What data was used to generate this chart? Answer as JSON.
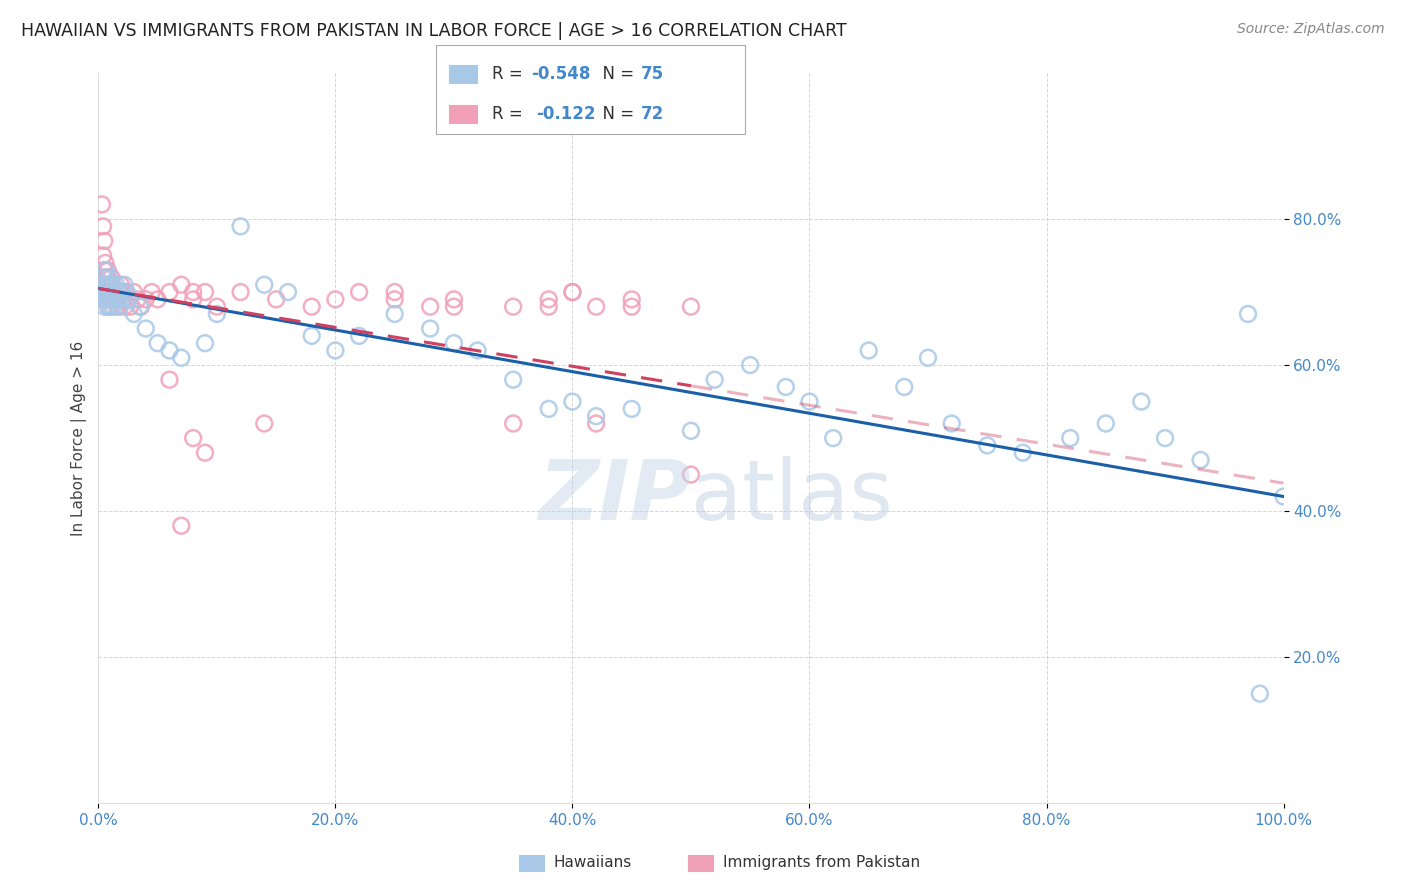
{
  "title": "HAWAIIAN VS IMMIGRANTS FROM PAKISTAN IN LABOR FORCE | AGE > 16 CORRELATION CHART",
  "source": "Source: ZipAtlas.com",
  "ylabel": "In Labor Force | Age > 16",
  "blue_R": -0.548,
  "blue_N": 75,
  "pink_R": -0.122,
  "pink_N": 72,
  "blue_color": "#a8c8e8",
  "pink_color": "#f0a0b8",
  "blue_line_color": "#1a5fa8",
  "pink_line_color": "#d04060",
  "watermark_zip": "ZIP",
  "watermark_atlas": "atlas",
  "legend_label_blue": "Hawaiians",
  "legend_label_pink": "Immigrants from Pakistan",
  "blue_scatter_x": [
    0.002,
    0.003,
    0.004,
    0.004,
    0.005,
    0.005,
    0.006,
    0.006,
    0.007,
    0.007,
    0.008,
    0.008,
    0.009,
    0.009,
    0.01,
    0.01,
    0.011,
    0.011,
    0.012,
    0.012,
    0.013,
    0.013,
    0.014,
    0.015,
    0.016,
    0.017,
    0.018,
    0.019,
    0.02,
    0.022,
    0.024,
    0.026,
    0.03,
    0.035,
    0.04,
    0.05,
    0.06,
    0.07,
    0.09,
    0.1,
    0.12,
    0.14,
    0.16,
    0.18,
    0.2,
    0.22,
    0.25,
    0.28,
    0.3,
    0.32,
    0.35,
    0.38,
    0.4,
    0.42,
    0.45,
    0.5,
    0.52,
    0.55,
    0.58,
    0.6,
    0.62,
    0.65,
    0.68,
    0.7,
    0.72,
    0.75,
    0.78,
    0.82,
    0.85,
    0.88,
    0.9,
    0.93,
    0.97,
    0.98,
    1.0
  ],
  "blue_scatter_y": [
    0.7,
    0.71,
    0.69,
    0.72,
    0.7,
    0.68,
    0.71,
    0.73,
    0.7,
    0.69,
    0.71,
    0.68,
    0.7,
    0.72,
    0.69,
    0.71,
    0.7,
    0.68,
    0.71,
    0.7,
    0.69,
    0.68,
    0.7,
    0.71,
    0.7,
    0.69,
    0.68,
    0.7,
    0.69,
    0.71,
    0.7,
    0.69,
    0.67,
    0.68,
    0.65,
    0.63,
    0.62,
    0.61,
    0.63,
    0.67,
    0.79,
    0.71,
    0.7,
    0.64,
    0.62,
    0.64,
    0.67,
    0.65,
    0.63,
    0.62,
    0.58,
    0.54,
    0.55,
    0.53,
    0.54,
    0.51,
    0.58,
    0.6,
    0.57,
    0.55,
    0.5,
    0.62,
    0.57,
    0.61,
    0.52,
    0.49,
    0.48,
    0.5,
    0.52,
    0.55,
    0.5,
    0.47,
    0.67,
    0.15,
    0.42
  ],
  "pink_scatter_x": [
    0.002,
    0.003,
    0.004,
    0.004,
    0.005,
    0.005,
    0.006,
    0.006,
    0.007,
    0.007,
    0.008,
    0.008,
    0.009,
    0.009,
    0.01,
    0.01,
    0.011,
    0.011,
    0.012,
    0.012,
    0.013,
    0.014,
    0.015,
    0.016,
    0.017,
    0.018,
    0.019,
    0.02,
    0.021,
    0.022,
    0.023,
    0.025,
    0.027,
    0.03,
    0.033,
    0.036,
    0.04,
    0.045,
    0.05,
    0.06,
    0.07,
    0.08,
    0.09,
    0.1,
    0.12,
    0.15,
    0.18,
    0.2,
    0.22,
    0.25,
    0.28,
    0.3,
    0.35,
    0.38,
    0.4,
    0.42,
    0.45,
    0.5,
    0.08,
    0.14,
    0.25,
    0.3,
    0.35,
    0.38,
    0.4,
    0.42,
    0.45,
    0.5,
    0.06,
    0.07,
    0.08,
    0.09
  ],
  "pink_scatter_y": [
    0.7,
    0.82,
    0.79,
    0.75,
    0.77,
    0.73,
    0.71,
    0.74,
    0.72,
    0.7,
    0.71,
    0.73,
    0.7,
    0.68,
    0.69,
    0.71,
    0.7,
    0.72,
    0.7,
    0.71,
    0.69,
    0.7,
    0.69,
    0.68,
    0.69,
    0.7,
    0.71,
    0.7,
    0.69,
    0.68,
    0.7,
    0.69,
    0.68,
    0.7,
    0.69,
    0.68,
    0.69,
    0.7,
    0.69,
    0.7,
    0.71,
    0.69,
    0.7,
    0.68,
    0.7,
    0.69,
    0.68,
    0.69,
    0.7,
    0.69,
    0.68,
    0.69,
    0.68,
    0.69,
    0.7,
    0.52,
    0.68,
    0.45,
    0.7,
    0.52,
    0.7,
    0.68,
    0.52,
    0.68,
    0.7,
    0.68,
    0.69,
    0.68,
    0.58,
    0.38,
    0.5,
    0.48
  ]
}
